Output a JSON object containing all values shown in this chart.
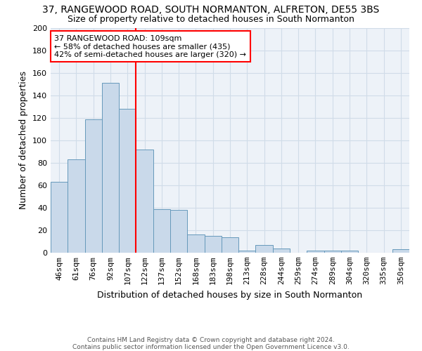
{
  "title": "37, RANGEWOOD ROAD, SOUTH NORMANTON, ALFRETON, DE55 3BS",
  "subtitle": "Size of property relative to detached houses in South Normanton",
  "xlabel": "Distribution of detached houses by size in South Normanton",
  "ylabel": "Number of detached properties",
  "bar_labels": [
    "46sqm",
    "61sqm",
    "76sqm",
    "92sqm",
    "107sqm",
    "122sqm",
    "137sqm",
    "152sqm",
    "168sqm",
    "183sqm",
    "198sqm",
    "213sqm",
    "228sqm",
    "244sqm",
    "259sqm",
    "274sqm",
    "289sqm",
    "304sqm",
    "320sqm",
    "335sqm",
    "350sqm"
  ],
  "bar_values": [
    63,
    83,
    119,
    151,
    128,
    92,
    39,
    38,
    16,
    15,
    14,
    2,
    7,
    4,
    0,
    2,
    2,
    2,
    0,
    0,
    3
  ],
  "bar_color": "#c9d9ea",
  "bar_edge_color": "#6699bb",
  "property_line_x": 4.5,
  "property_line_color": "red",
  "ylim": [
    0,
    200
  ],
  "yticks": [
    0,
    20,
    40,
    60,
    80,
    100,
    120,
    140,
    160,
    180,
    200
  ],
  "annotation_text": "37 RANGEWOOD ROAD: 109sqm\n← 58% of detached houses are smaller (435)\n42% of semi-detached houses are larger (320) →",
  "annotation_box_color": "white",
  "annotation_box_edge_color": "red",
  "footer_line1": "Contains HM Land Registry data © Crown copyright and database right 2024.",
  "footer_line2": "Contains public sector information licensed under the Open Government Licence v3.0.",
  "grid_color": "#d0dce8",
  "background_color": "#edf2f8",
  "title_fontsize": 10,
  "subtitle_fontsize": 9,
  "ylabel_fontsize": 9,
  "xlabel_fontsize": 9,
  "tick_fontsize": 8,
  "annotation_fontsize": 8
}
